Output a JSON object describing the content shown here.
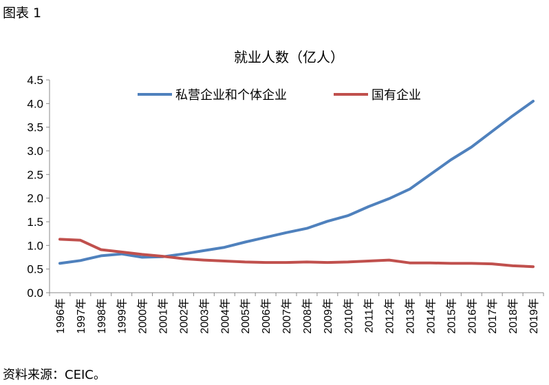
{
  "figure_label": "图表 1",
  "source": "资料来源：CEIC。",
  "chart_data": {
    "type": "line",
    "title": "就业人数（亿人）",
    "xlabel": "",
    "ylabel": "",
    "ylim": [
      0,
      4.5
    ],
    "ytick_step": 0.5,
    "grid": false,
    "legend_position": "top",
    "x": [
      "1996年",
      "1997年",
      "1998年",
      "1999年",
      "2000年",
      "2001年",
      "2002年",
      "2003年",
      "2004年",
      "2005年",
      "2006年",
      "2007年",
      "2008年",
      "2009年",
      "2010年",
      "2011年",
      "2012年",
      "2013年",
      "2014年",
      "2015年",
      "2016年",
      "2017年",
      "2018年",
      "2019年"
    ],
    "series": [
      {
        "name": "私营企业和个体企业",
        "color": "#4f81bd",
        "values": [
          0.62,
          0.68,
          0.78,
          0.82,
          0.75,
          0.76,
          0.82,
          0.89,
          0.96,
          1.07,
          1.17,
          1.27,
          1.36,
          1.51,
          1.63,
          1.82,
          1.99,
          2.19,
          2.5,
          2.81,
          3.08,
          3.41,
          3.74,
          4.05
        ]
      },
      {
        "name": "国有企业",
        "color": "#c0504d",
        "values": [
          1.13,
          1.11,
          0.91,
          0.86,
          0.81,
          0.77,
          0.72,
          0.69,
          0.67,
          0.65,
          0.64,
          0.64,
          0.65,
          0.64,
          0.65,
          0.67,
          0.69,
          0.63,
          0.63,
          0.62,
          0.62,
          0.61,
          0.57,
          0.55
        ]
      }
    ]
  }
}
